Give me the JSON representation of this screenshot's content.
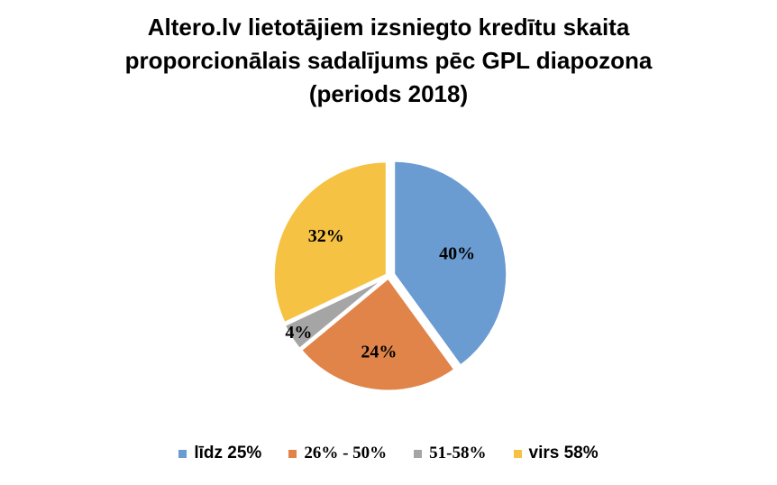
{
  "title_lines": [
    "Altero.lv lietotājiem izsniegto kredītu skaita",
    "proporcionālais sadalījums pēc GPL diapozona",
    "(periods 2018)"
  ],
  "chart_data": {
    "type": "pie",
    "title": "Altero.lv lietotājiem izsniegto kredītu skaita proporcionālais sadalījums pēc GPL diapozona (periods 2018)",
    "categories": [
      "līdz 25%",
      "26% - 50%",
      "51-58%",
      "virs 58%"
    ],
    "values": [
      40,
      24,
      4,
      32
    ],
    "data_labels": [
      "40%",
      "24%",
      "4%",
      "32%"
    ],
    "colors": [
      "#6A9BD1",
      "#E0844A",
      "#A5A5A5",
      "#F5C243"
    ],
    "legend_position": "bottom",
    "exploded": true
  }
}
